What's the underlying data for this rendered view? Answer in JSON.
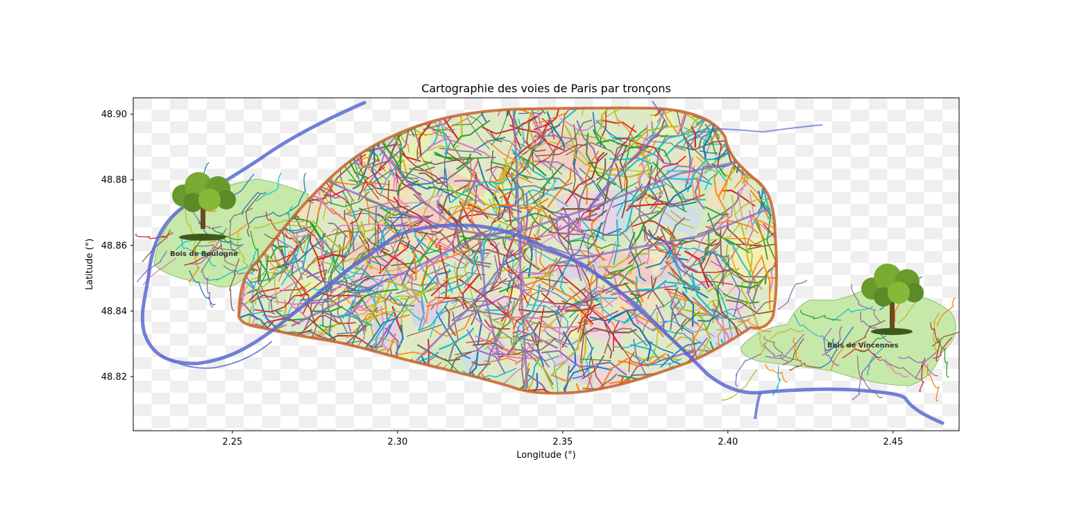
{
  "chart_data": {
    "type": "scatter",
    "title": "Cartographie des voies de Paris par tronçons",
    "xlabel": "Longitude (°)",
    "ylabel": "Latitude (°)",
    "xlim": [
      2.22,
      2.47
    ],
    "ylim": [
      48.8035,
      48.905
    ],
    "xticks": [
      2.25,
      2.3,
      2.35,
      2.4,
      2.45
    ],
    "xtick_labels": [
      "2.25",
      "2.30",
      "2.35",
      "2.40",
      "2.45"
    ],
    "yticks": [
      48.82,
      48.84,
      48.86,
      48.88,
      48.9
    ],
    "ytick_labels": [
      "48.82",
      "48.84",
      "48.86",
      "48.88",
      "48.90"
    ],
    "grid": false,
    "legend": "none",
    "background_image": "Paris map with street segments (checkerboard transparency backdrop)",
    "annotations": [
      {
        "text": "Bois de Boulogne",
        "x": 2.2425,
        "y": 48.857
      },
      {
        "text": "Bois de Vincennes",
        "x": 2.4415,
        "y": 48.8315
      }
    ],
    "series": [
      {
        "values": [
          [
            2.2615,
            48.845
          ],
          [
            2.2795,
            48.832
          ],
          [
            2.302,
            48.8272
          ],
          [
            2.33,
            48.8195
          ],
          [
            2.348,
            48.8168
          ],
          [
            2.368,
            48.8205
          ],
          [
            2.389,
            48.828
          ],
          [
            2.405,
            48.839
          ],
          [
            2.414,
            48.852
          ],
          [
            2.4125,
            48.871
          ],
          [
            2.404,
            48.883
          ],
          [
            2.392,
            48.896
          ],
          [
            2.36,
            48.901
          ],
          [
            2.325,
            48.8995
          ],
          [
            2.3,
            48.888
          ],
          [
            2.283,
            48.876
          ],
          [
            2.268,
            48.862
          ],
          [
            2.2585,
            48.848
          ]
        ]
      },
      {
        "values": [
          [
            2.29,
            48.903
          ],
          [
            2.27,
            48.895
          ],
          [
            2.252,
            48.883
          ],
          [
            2.233,
            48.87
          ],
          [
            2.225,
            48.858
          ],
          [
            2.222,
            48.842
          ],
          [
            2.226,
            48.828
          ],
          [
            2.245,
            48.824
          ],
          [
            2.263,
            48.831
          ],
          [
            2.282,
            48.844
          ],
          [
            2.303,
            48.858
          ],
          [
            2.325,
            48.864
          ],
          [
            2.345,
            48.861
          ],
          [
            2.362,
            48.851
          ],
          [
            2.38,
            48.84
          ],
          [
            2.392,
            48.83
          ],
          [
            2.404,
            48.819
          ],
          [
            2.425,
            48.818
          ],
          [
            2.445,
            48.816
          ],
          [
            2.465,
            48.807
          ]
        ]
      }
    ],
    "colors": {
      "river": "#5a6ad0",
      "streets": [
        "#1f77b4",
        "#ff7f0e",
        "#2ca02c",
        "#d62728",
        "#9467bd",
        "#8c564b",
        "#e377c2",
        "#7f7f7f",
        "#bcbd22",
        "#17becf"
      ],
      "park": "#c6e8a8",
      "tree": "#6a9a2c"
    },
    "icons": [
      "tree-icon",
      "tree-icon"
    ]
  }
}
